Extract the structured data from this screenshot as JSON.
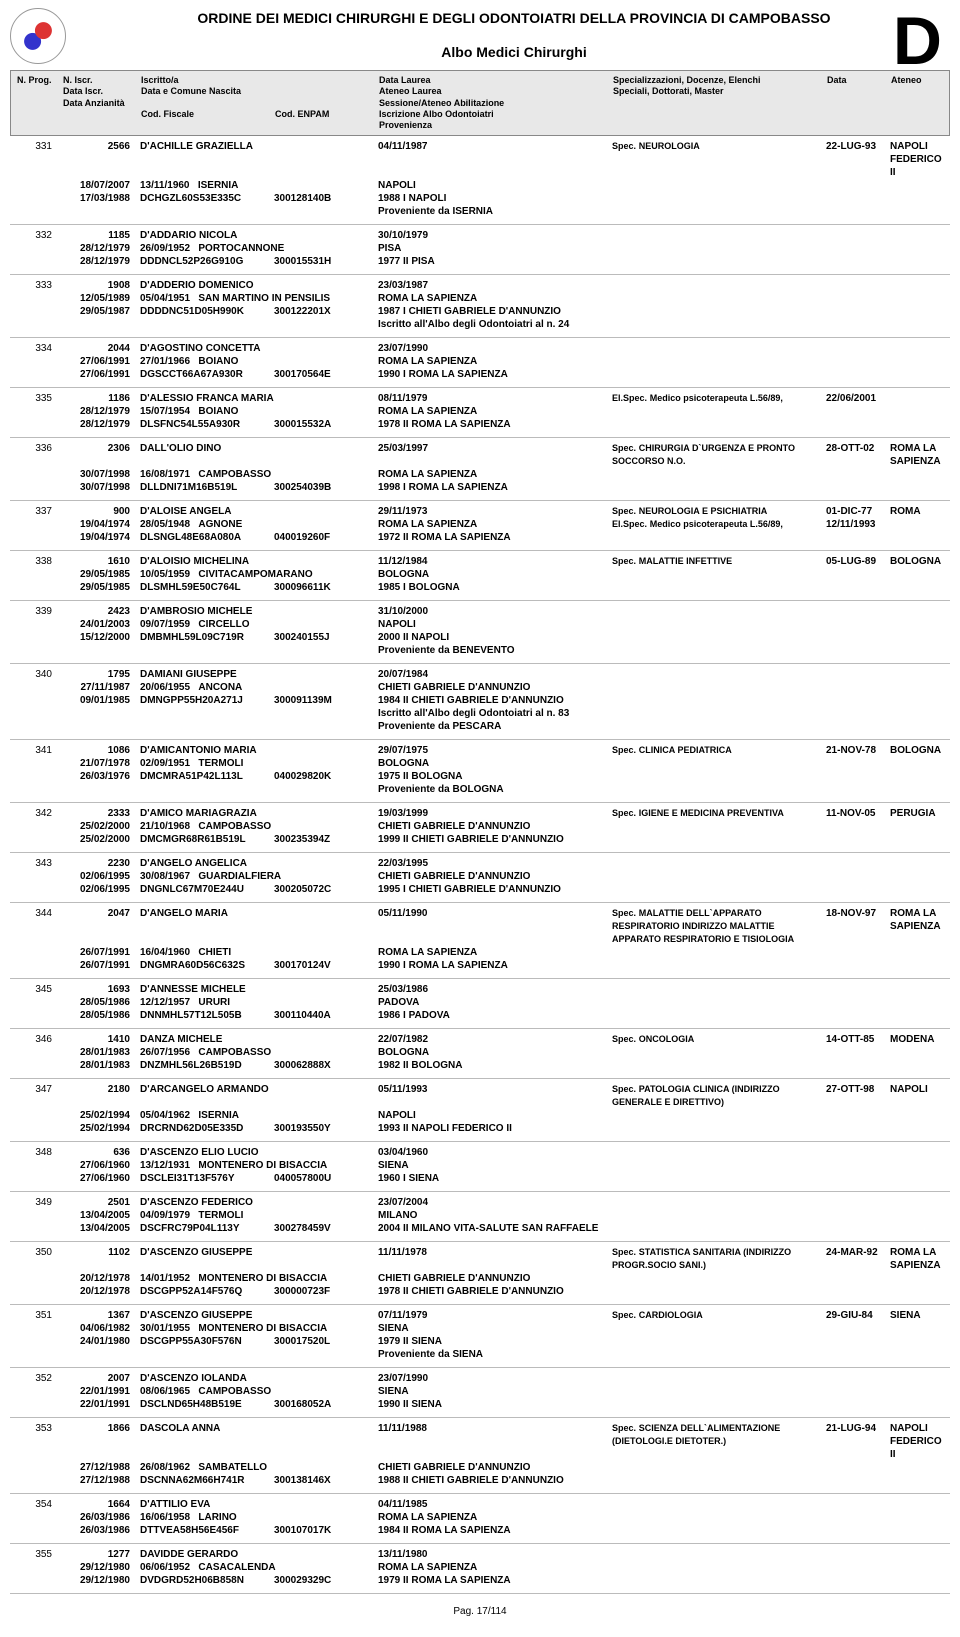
{
  "header": {
    "title": "ORDINE DEI MEDICI CHIRURGHI E DEGLI ODONTOIATRI DELLA PROVINCIA DI CAMPOBASSO",
    "subtitle": "Albo Medici Chirurghi",
    "letter": "D"
  },
  "columns": {
    "c1": "N. Prog.",
    "c2a": "N. Iscr.",
    "c2b": "Data Iscr.",
    "c2c": "Data Anzianità",
    "c3a": "Iscritto/a",
    "c3b": "Data e Comune Nascita",
    "c3c": "Cod. Fiscale",
    "c4": "Cod. ENPAM",
    "c5a": "Data Laurea",
    "c5b": "Ateneo Laurea",
    "c5c": "Sessione/Ateneo Abilitazione",
    "c5d": "Iscrizione Albo Odontoiatri",
    "c5e": "Provenienza",
    "c6a": "Specializzazioni, Docenze, Elenchi",
    "c6b": "Speciali, Dottorati, Master",
    "c7": "Data",
    "c8": "Ateneo"
  },
  "rows": [
    {
      "n": "331",
      "iscr": "2566",
      "di": "18/07/2007",
      "da": "17/03/1988",
      "nome": "D'ACHILLE GRAZIELLA",
      "dn": "13/11/1960",
      "cn": "ISERNIA",
      "cf": "DCHGZL60S53E335C",
      "enp": "300128140B",
      "dl": "04/11/1987",
      "al": "NAPOLI",
      "sa": "1988 I NAPOLI",
      "extra": [
        "Proveniente da ISERNIA"
      ],
      "spec": [
        {
          "l": "Spec.",
          "t": "NEUROLOGIA",
          "d": "22-LUG-93",
          "a": "NAPOLI FEDERICO II"
        }
      ]
    },
    {
      "n": "332",
      "iscr": "1185",
      "di": "28/12/1979",
      "da": "28/12/1979",
      "nome": "D'ADDARIO NICOLA",
      "dn": "26/09/1952",
      "cn": "PORTOCANNONE",
      "cf": "DDDNCL52P26G910G",
      "enp": "300015531H",
      "dl": "30/10/1979",
      "al": "PISA",
      "sa": "1977 II PISA",
      "extra": [],
      "spec": []
    },
    {
      "n": "333",
      "iscr": "1908",
      "di": "12/05/1989",
      "da": "29/05/1987",
      "nome": "D'ADDERIO DOMENICO",
      "dn": "05/04/1951",
      "cn": "SAN MARTINO IN PENSILIS",
      "cf": "DDDDNC51D05H990K",
      "enp": "300122201X",
      "dl": "23/03/1987",
      "al": "ROMA LA SAPIENZA",
      "sa": "1987 I CHIETI GABRIELE D'ANNUNZIO",
      "extra": [
        "Iscritto all'Albo degli Odontoiatri al n. 24"
      ],
      "spec": []
    },
    {
      "n": "334",
      "iscr": "2044",
      "di": "27/06/1991",
      "da": "27/06/1991",
      "nome": "D'AGOSTINO CONCETTA",
      "dn": "27/01/1966",
      "cn": "BOIANO",
      "cf": "DGSCCT66A67A930R",
      "enp": "300170564E",
      "dl": "23/07/1990",
      "al": "ROMA LA SAPIENZA",
      "sa": "1990 I ROMA LA SAPIENZA",
      "extra": [],
      "spec": []
    },
    {
      "n": "335",
      "iscr": "1186",
      "di": "28/12/1979",
      "da": "28/12/1979",
      "nome": "D'ALESSIO FRANCA MARIA",
      "dn": "15/07/1954",
      "cn": "BOIANO",
      "cf": "DLSFNC54L55A930R",
      "enp": "300015532A",
      "dl": "08/11/1979",
      "al": "ROMA LA SAPIENZA",
      "sa": "1978 II ROMA LA SAPIENZA",
      "extra": [],
      "spec": [
        {
          "l": "El.Spec.",
          "t": "Medico psicoterapeuta L.56/89,",
          "d": "22/06/2001",
          "a": ""
        }
      ]
    },
    {
      "n": "336",
      "iscr": "2306",
      "di": "30/07/1998",
      "da": "30/07/1998",
      "nome": "DALL'OLIO DINO",
      "dn": "16/08/1971",
      "cn": "CAMPOBASSO",
      "cf": "DLLDNI71M16B519L",
      "enp": "300254039B",
      "dl": "25/03/1997",
      "al": "ROMA LA SAPIENZA",
      "sa": "1998 I ROMA LA SAPIENZA",
      "extra": [],
      "spec": [
        {
          "l": "Spec.",
          "t": "CHIRURGIA D`URGENZA E PRONTO SOCCORSO N.O.",
          "d": "28-OTT-02",
          "a": "ROMA LA SAPIENZA"
        }
      ]
    },
    {
      "n": "337",
      "iscr": "900",
      "di": "19/04/1974",
      "da": "19/04/1974",
      "nome": "D'ALOISE ANGELA",
      "dn": "28/05/1948",
      "cn": "AGNONE",
      "cf": "DLSNGL48E68A080A",
      "enp": "040019260F",
      "dl": "29/11/1973",
      "al": "ROMA LA SAPIENZA",
      "sa": "1972 II ROMA LA SAPIENZA",
      "extra": [],
      "spec": [
        {
          "l": "Spec.",
          "t": "NEUROLOGIA E PSICHIATRIA",
          "d": "01-DIC-77",
          "a": "ROMA"
        },
        {
          "l": "El.Spec.",
          "t": "Medico psicoterapeuta L.56/89,",
          "d": "12/11/1993",
          "a": ""
        }
      ]
    },
    {
      "n": "338",
      "iscr": "1610",
      "di": "29/05/1985",
      "da": "29/05/1985",
      "nome": "D'ALOISIO MICHELINA",
      "dn": "10/05/1959",
      "cn": "CIVITACAMPOMARANO",
      "cf": "DLSMHL59E50C764L",
      "enp": "300096611K",
      "dl": "11/12/1984",
      "al": "BOLOGNA",
      "sa": "1985 I BOLOGNA",
      "extra": [],
      "spec": [
        {
          "l": "Spec.",
          "t": "MALATTIE INFETTIVE",
          "d": "05-LUG-89",
          "a": "BOLOGNA"
        }
      ]
    },
    {
      "n": "339",
      "iscr": "2423",
      "di": "24/01/2003",
      "da": "15/12/2000",
      "nome": "D'AMBROSIO MICHELE",
      "dn": "09/07/1959",
      "cn": "CIRCELLO",
      "cf": "DMBMHL59L09C719R",
      "enp": "300240155J",
      "dl": "31/10/2000",
      "al": "NAPOLI",
      "sa": "2000 II NAPOLI",
      "extra": [
        "Proveniente da BENEVENTO"
      ],
      "spec": []
    },
    {
      "n": "340",
      "iscr": "1795",
      "di": "27/11/1987",
      "da": "09/01/1985",
      "nome": "DAMIANI GIUSEPPE",
      "dn": "20/06/1955",
      "cn": "ANCONA",
      "cf": "DMNGPP55H20A271J",
      "enp": "300091139M",
      "dl": "20/07/1984",
      "al": "CHIETI GABRIELE D'ANNUNZIO",
      "sa": "1984 II CHIETI GABRIELE D'ANNUNZIO",
      "extra": [
        "Iscritto all'Albo degli Odontoiatri al n. 83",
        "Proveniente da PESCARA"
      ],
      "spec": []
    },
    {
      "n": "341",
      "iscr": "1086",
      "di": "21/07/1978",
      "da": "26/03/1976",
      "nome": "D'AMICANTONIO MARIA",
      "dn": "02/09/1951",
      "cn": "TERMOLI",
      "cf": "DMCMRA51P42L113L",
      "enp": "040029820K",
      "dl": "29/07/1975",
      "al": "BOLOGNA",
      "sa": "1975 II BOLOGNA",
      "extra": [
        "Proveniente da BOLOGNA"
      ],
      "spec": [
        {
          "l": "Spec.",
          "t": "CLINICA PEDIATRICA",
          "d": "21-NOV-78",
          "a": "BOLOGNA"
        }
      ]
    },
    {
      "n": "342",
      "iscr": "2333",
      "di": "25/02/2000",
      "da": "25/02/2000",
      "nome": "D'AMICO MARIAGRAZIA",
      "dn": "21/10/1968",
      "cn": "CAMPOBASSO",
      "cf": "DMCMGR68R61B519L",
      "enp": "300235394Z",
      "dl": "19/03/1999",
      "al": "CHIETI GABRIELE D'ANNUNZIO",
      "sa": "1999 II CHIETI GABRIELE D'ANNUNZIO",
      "extra": [],
      "spec": [
        {
          "l": "Spec.",
          "t": "IGIENE E MEDICINA PREVENTIVA",
          "d": "11-NOV-05",
          "a": "PERUGIA"
        }
      ]
    },
    {
      "n": "343",
      "iscr": "2230",
      "di": "02/06/1995",
      "da": "02/06/1995",
      "nome": "D'ANGELO ANGELICA",
      "dn": "30/08/1967",
      "cn": "GUARDIALFIERA",
      "cf": "DNGNLC67M70E244U",
      "enp": "300205072C",
      "dl": "22/03/1995",
      "al": "CHIETI GABRIELE D'ANNUNZIO",
      "sa": "1995 I CHIETI GABRIELE D'ANNUNZIO",
      "extra": [],
      "spec": []
    },
    {
      "n": "344",
      "iscr": "2047",
      "di": "26/07/1991",
      "da": "26/07/1991",
      "nome": "D'ANGELO MARIA",
      "dn": "16/04/1960",
      "cn": "CHIETI",
      "cf": "DNGMRA60D56C632S",
      "enp": "300170124V",
      "dl": "05/11/1990",
      "al": "ROMA LA SAPIENZA",
      "sa": "1990 I ROMA LA SAPIENZA",
      "extra": [],
      "spec": [
        {
          "l": "Spec.",
          "t": "MALATTIE DELL`APPARATO RESPIRATORIO INDIRIZZO MALATTIE APPARATO RESPIRATORIO E TISIOLOGIA",
          "d": "18-NOV-97",
          "a": "ROMA LA SAPIENZA"
        }
      ]
    },
    {
      "n": "345",
      "iscr": "1693",
      "di": "28/05/1986",
      "da": "28/05/1986",
      "nome": "D'ANNESSE MICHELE",
      "dn": "12/12/1957",
      "cn": "URURI",
      "cf": "DNNMHL57T12L505B",
      "enp": "300110440A",
      "dl": "25/03/1986",
      "al": "PADOVA",
      "sa": "1986 I PADOVA",
      "extra": [],
      "spec": []
    },
    {
      "n": "346",
      "iscr": "1410",
      "di": "28/01/1983",
      "da": "28/01/1983",
      "nome": "DANZA MICHELE",
      "dn": "26/07/1956",
      "cn": "CAMPOBASSO",
      "cf": "DNZMHL56L26B519D",
      "enp": "300062888X",
      "dl": "22/07/1982",
      "al": "BOLOGNA",
      "sa": "1982 II BOLOGNA",
      "extra": [],
      "spec": [
        {
          "l": "Spec.",
          "t": "ONCOLOGIA",
          "d": "14-OTT-85",
          "a": "MODENA"
        }
      ]
    },
    {
      "n": "347",
      "iscr": "2180",
      "di": "25/02/1994",
      "da": "25/02/1994",
      "nome": "D'ARCANGELO ARMANDO",
      "dn": "05/04/1962",
      "cn": "ISERNIA",
      "cf": "DRCRND62D05E335D",
      "enp": "300193550Y",
      "dl": "05/11/1993",
      "al": "NAPOLI",
      "sa": "1993 II NAPOLI FEDERICO II",
      "extra": [],
      "spec": [
        {
          "l": "Spec.",
          "t": "PATOLOGIA CLINICA (INDIRIZZO GENERALE E DIRETTIVO)",
          "d": "27-OTT-98",
          "a": "NAPOLI"
        }
      ]
    },
    {
      "n": "348",
      "iscr": "636",
      "di": "27/06/1960",
      "da": "27/06/1960",
      "nome": "D'ASCENZO ELIO LUCIO",
      "dn": "13/12/1931",
      "cn": "MONTENERO DI BISACCIA",
      "cf": "DSCLEI31T13F576Y",
      "enp": "040057800U",
      "dl": "03/04/1960",
      "al": "SIENA",
      "sa": "1960 I SIENA",
      "extra": [],
      "spec": []
    },
    {
      "n": "349",
      "iscr": "2501",
      "di": "13/04/2005",
      "da": "13/04/2005",
      "nome": "D'ASCENZO FEDERICO",
      "dn": "04/09/1979",
      "cn": "TERMOLI",
      "cf": "DSCFRC79P04L113Y",
      "enp": "300278459V",
      "dl": "23/07/2004",
      "al": "MILANO",
      "sa": "2004 II MILANO VITA-SALUTE SAN RAFFAELE",
      "extra": [],
      "spec": []
    },
    {
      "n": "350",
      "iscr": "1102",
      "di": "20/12/1978",
      "da": "20/12/1978",
      "nome": "D'ASCENZO GIUSEPPE",
      "dn": "14/01/1952",
      "cn": "MONTENERO DI BISACCIA",
      "cf": "DSCGPP52A14F576Q",
      "enp": "300000723F",
      "dl": "11/11/1978",
      "al": "CHIETI GABRIELE D'ANNUNZIO",
      "sa": "1978 II CHIETI GABRIELE D'ANNUNZIO",
      "extra": [],
      "spec": [
        {
          "l": "Spec.",
          "t": "STATISTICA SANITARIA (INDIRIZZO PROGR.SOCIO SANI.)",
          "d": "24-MAR-92",
          "a": "ROMA LA SAPIENZA"
        }
      ]
    },
    {
      "n": "351",
      "iscr": "1367",
      "di": "04/06/1982",
      "da": "24/01/1980",
      "nome": "D'ASCENZO GIUSEPPE",
      "dn": "30/01/1955",
      "cn": "MONTENERO DI BISACCIA",
      "cf": "DSCGPP55A30F576N",
      "enp": "300017520L",
      "dl": "07/11/1979",
      "al": "SIENA",
      "sa": "1979 II SIENA",
      "extra": [
        "Proveniente da SIENA"
      ],
      "spec": [
        {
          "l": "Spec.",
          "t": "CARDIOLOGIA",
          "d": "29-GIU-84",
          "a": "SIENA"
        }
      ]
    },
    {
      "n": "352",
      "iscr": "2007",
      "di": "22/01/1991",
      "da": "22/01/1991",
      "nome": "D'ASCENZO IOLANDA",
      "dn": "08/06/1965",
      "cn": "CAMPOBASSO",
      "cf": "DSCLND65H48B519E",
      "enp": "300168052A",
      "dl": "23/07/1990",
      "al": "SIENA",
      "sa": "1990 II SIENA",
      "extra": [],
      "spec": []
    },
    {
      "n": "353",
      "iscr": "1866",
      "di": "27/12/1988",
      "da": "27/12/1988",
      "nome": "DASCOLA ANNA",
      "dn": "26/08/1962",
      "cn": "SAMBATELLO",
      "cf": "DSCNNA62M66H741R",
      "enp": "300138146X",
      "dl": "11/11/1988",
      "al": "CHIETI GABRIELE D'ANNUNZIO",
      "sa": "1988 II CHIETI GABRIELE D'ANNUNZIO",
      "extra": [],
      "spec": [
        {
          "l": "Spec.",
          "t": "SCIENZA DELL`ALIMENTAZIONE (DIETOLOGI.E DIETOTER.)",
          "d": "21-LUG-94",
          "a": "NAPOLI FEDERICO II"
        }
      ]
    },
    {
      "n": "354",
      "iscr": "1664",
      "di": "26/03/1986",
      "da": "26/03/1986",
      "nome": "D'ATTILIO EVA",
      "dn": "16/06/1958",
      "cn": "LARINO",
      "cf": "DTTVEA58H56E456F",
      "enp": "300107017K",
      "dl": "04/11/1985",
      "al": "ROMA LA SAPIENZA",
      "sa": "1984 II ROMA LA SAPIENZA",
      "extra": [],
      "spec": []
    },
    {
      "n": "355",
      "iscr": "1277",
      "di": "29/12/1980",
      "da": "29/12/1980",
      "nome": "DAVIDDE GERARDO",
      "dn": "06/06/1952",
      "cn": "CASACALENDA",
      "cf": "DVDGRD52H06B858N",
      "enp": "300029329C",
      "dl": "13/11/1980",
      "al": "ROMA LA SAPIENZA",
      "sa": "1979 II ROMA LA SAPIENZA",
      "extra": [],
      "spec": []
    }
  ],
  "footer": "Pag. 17/114"
}
